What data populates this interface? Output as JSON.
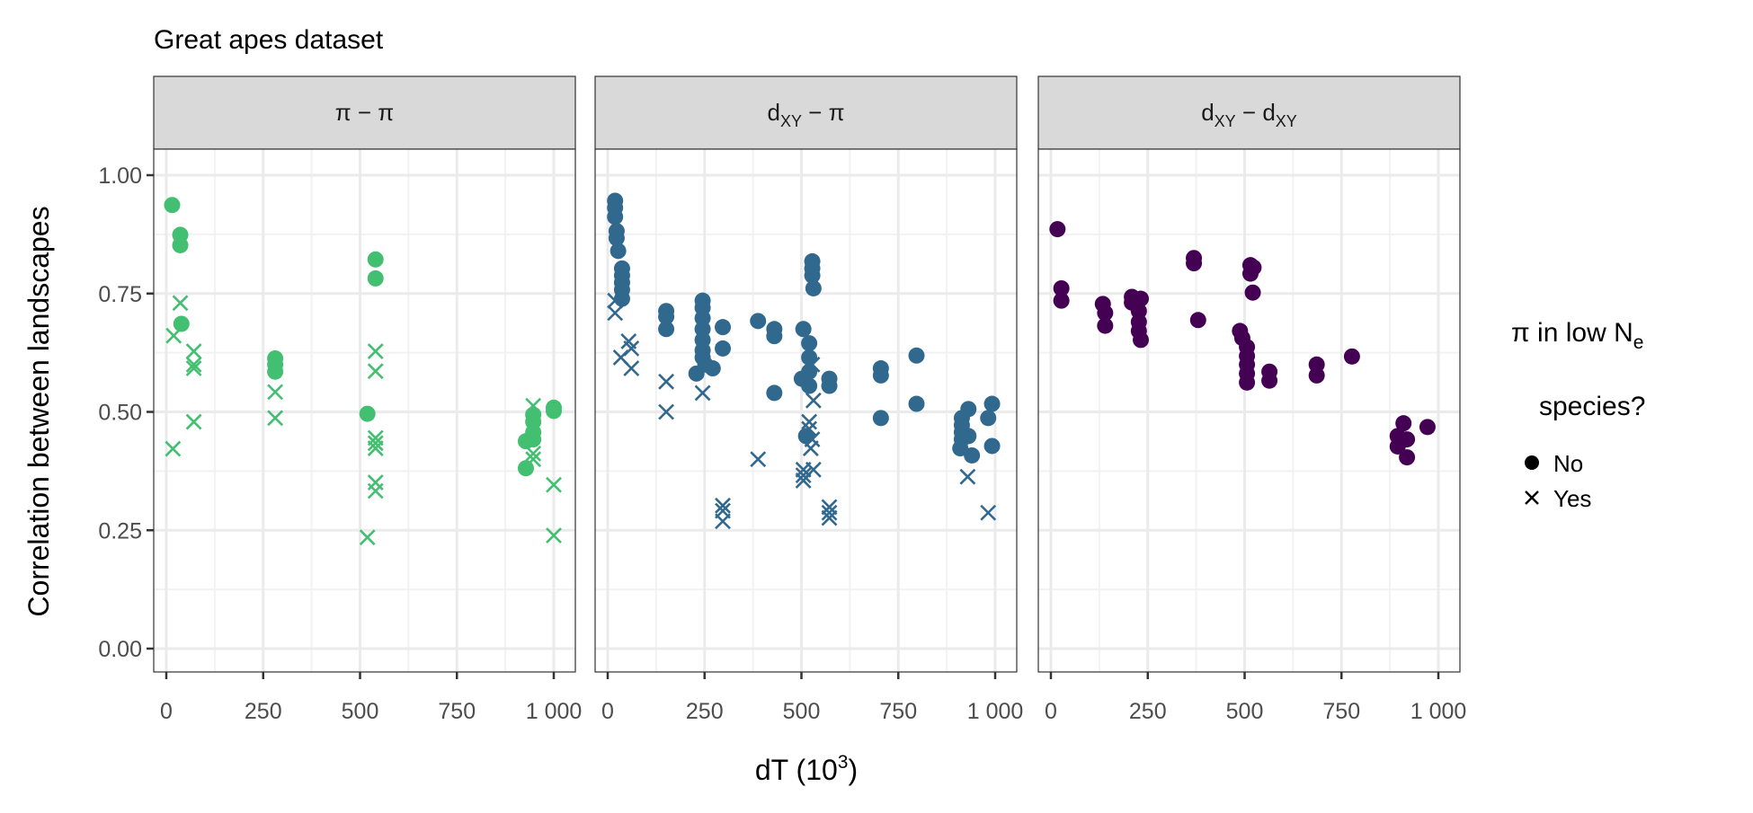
{
  "chart_data": {
    "type": "scatter",
    "title": "Great apes dataset",
    "xlabel": {
      "main": "dT (10",
      "sup": "3",
      "tail": ")"
    },
    "ylabel": "Correlation between landscapes",
    "xlim": [
      -30,
      1040
    ],
    "ylim": [
      -0.04,
      1.05
    ],
    "x_ticks": [
      0,
      250,
      500,
      750,
      1000
    ],
    "x_tick_labels": [
      "0",
      "250",
      "500",
      "750",
      "1 000"
    ],
    "y_ticks": [
      0,
      0.25,
      0.5,
      0.75,
      1.0
    ],
    "y_tick_labels": [
      "0.00",
      "0.25",
      "0.50",
      "0.75",
      "1.00"
    ],
    "grid": true,
    "legend": {
      "placement": "right",
      "title_line1": "π in low N",
      "title_line1_sub": "e",
      "title_line2": "species?",
      "entries": [
        {
          "label": "No",
          "shape": "circle"
        },
        {
          "label": "Yes",
          "shape": "cross"
        }
      ]
    },
    "panels": [
      {
        "strip": [
          {
            "t": "π − π"
          }
        ],
        "color": "#43bf71",
        "no": [
          [
            15,
            0.937
          ],
          [
            36,
            0.874
          ],
          [
            36,
            0.852
          ],
          [
            39,
            0.686
          ],
          [
            281,
            0.613
          ],
          [
            281,
            0.6
          ],
          [
            281,
            0.585
          ],
          [
            540,
            0.822
          ],
          [
            540,
            0.782
          ],
          [
            519,
            0.496
          ],
          [
            928,
            0.438
          ],
          [
            947,
            0.494
          ],
          [
            947,
            0.479
          ],
          [
            947,
            0.457
          ],
          [
            947,
            0.442
          ],
          [
            928,
            0.381
          ],
          [
            1000,
            0.509
          ],
          [
            1000,
            0.502
          ]
        ],
        "yes": [
          [
            36,
            0.73
          ],
          [
            19,
            0.661
          ],
          [
            71,
            0.628
          ],
          [
            71,
            0.6
          ],
          [
            71,
            0.592
          ],
          [
            71,
            0.479
          ],
          [
            17,
            0.422
          ],
          [
            281,
            0.542
          ],
          [
            281,
            0.487
          ],
          [
            540,
            0.628
          ],
          [
            540,
            0.586
          ],
          [
            540,
            0.445
          ],
          [
            540,
            0.434
          ],
          [
            540,
            0.423
          ],
          [
            540,
            0.351
          ],
          [
            540,
            0.333
          ],
          [
            519,
            0.235
          ],
          [
            947,
            0.513
          ],
          [
            947,
            0.412
          ],
          [
            947,
            0.4
          ],
          [
            1000,
            0.346
          ],
          [
            1000,
            0.239
          ]
        ]
      },
      {
        "strip": [
          {
            "t": "d"
          },
          {
            "t": "XY",
            "sub": true
          },
          {
            "t": " − π"
          }
        ],
        "color": "#31688e",
        "no": [
          [
            19,
            0.946
          ],
          [
            19,
            0.931
          ],
          [
            19,
            0.912
          ],
          [
            23,
            0.882
          ],
          [
            23,
            0.867
          ],
          [
            27,
            0.84
          ],
          [
            37,
            0.803
          ],
          [
            37,
            0.788
          ],
          [
            37,
            0.773
          ],
          [
            37,
            0.758
          ],
          [
            37,
            0.739
          ],
          [
            151,
            0.713
          ],
          [
            151,
            0.701
          ],
          [
            151,
            0.675
          ],
          [
            245,
            0.735
          ],
          [
            245,
            0.72
          ],
          [
            245,
            0.698
          ],
          [
            245,
            0.675
          ],
          [
            245,
            0.652
          ],
          [
            245,
            0.63
          ],
          [
            245,
            0.615
          ],
          [
            229,
            0.581
          ],
          [
            271,
            0.592
          ],
          [
            252,
            0.6
          ],
          [
            297,
            0.679
          ],
          [
            297,
            0.634
          ],
          [
            388,
            0.692
          ],
          [
            430,
            0.675
          ],
          [
            430,
            0.66
          ],
          [
            430,
            0.54
          ],
          [
            505,
            0.675
          ],
          [
            520,
            0.645
          ],
          [
            520,
            0.615
          ],
          [
            520,
            0.585
          ],
          [
            501,
            0.57
          ],
          [
            520,
            0.555
          ],
          [
            528,
            0.818
          ],
          [
            528,
            0.803
          ],
          [
            528,
            0.788
          ],
          [
            531,
            0.761
          ],
          [
            572,
            0.57
          ],
          [
            572,
            0.555
          ],
          [
            512,
            0.449
          ],
          [
            705,
            0.592
          ],
          [
            705,
            0.577
          ],
          [
            705,
            0.487
          ],
          [
            797,
            0.619
          ],
          [
            797,
            0.517
          ],
          [
            931,
            0.506
          ],
          [
            914,
            0.487
          ],
          [
            914,
            0.472
          ],
          [
            914,
            0.457
          ],
          [
            914,
            0.442
          ],
          [
            910,
            0.423
          ],
          [
            940,
            0.408
          ],
          [
            931,
            0.449
          ],
          [
            992,
            0.517
          ],
          [
            982,
            0.487
          ],
          [
            992,
            0.428
          ]
        ],
        "yes": [
          [
            19,
            0.735
          ],
          [
            19,
            0.709
          ],
          [
            54,
            0.649
          ],
          [
            61,
            0.634
          ],
          [
            34,
            0.615
          ],
          [
            61,
            0.592
          ],
          [
            151,
            0.564
          ],
          [
            151,
            0.5
          ],
          [
            245,
            0.54
          ],
          [
            297,
            0.302
          ],
          [
            297,
            0.291
          ],
          [
            297,
            0.269
          ],
          [
            388,
            0.4
          ],
          [
            531,
            0.524
          ],
          [
            528,
            0.6
          ],
          [
            520,
            0.479
          ],
          [
            520,
            0.464
          ],
          [
            528,
            0.442
          ],
          [
            524,
            0.423
          ],
          [
            531,
            0.378
          ],
          [
            505,
            0.378
          ],
          [
            505,
            0.366
          ],
          [
            505,
            0.355
          ],
          [
            572,
            0.299
          ],
          [
            572,
            0.287
          ],
          [
            572,
            0.276
          ],
          [
            929,
            0.363
          ],
          [
            982,
            0.287
          ]
        ]
      },
      {
        "strip": [
          {
            "t": "d"
          },
          {
            "t": "XY",
            "sub": true
          },
          {
            "t": " − d"
          },
          {
            "t": "XY",
            "sub": true
          }
        ],
        "color": "#440154",
        "no": [
          [
            17,
            0.886
          ],
          [
            27,
            0.761
          ],
          [
            27,
            0.735
          ],
          [
            134,
            0.728
          ],
          [
            140,
            0.709
          ],
          [
            140,
            0.682
          ],
          [
            209,
            0.743
          ],
          [
            209,
            0.731
          ],
          [
            232,
            0.739
          ],
          [
            227,
            0.713
          ],
          [
            227,
            0.69
          ],
          [
            227,
            0.671
          ],
          [
            232,
            0.652
          ],
          [
            369,
            0.825
          ],
          [
            369,
            0.814
          ],
          [
            380,
            0.694
          ],
          [
            488,
            0.671
          ],
          [
            494,
            0.656
          ],
          [
            506,
            0.637
          ],
          [
            506,
            0.618
          ],
          [
            506,
            0.6
          ],
          [
            506,
            0.581
          ],
          [
            506,
            0.562
          ],
          [
            515,
            0.81
          ],
          [
            515,
            0.792
          ],
          [
            523,
            0.805
          ],
          [
            521,
            0.752
          ],
          [
            564,
            0.585
          ],
          [
            564,
            0.566
          ],
          [
            686,
            0.6
          ],
          [
            686,
            0.577
          ],
          [
            777,
            0.617
          ],
          [
            910,
            0.476
          ],
          [
            895,
            0.449
          ],
          [
            895,
            0.427
          ],
          [
            919,
            0.442
          ],
          [
            919,
            0.404
          ],
          [
            972,
            0.468
          ]
        ],
        "yes": []
      }
    ]
  }
}
